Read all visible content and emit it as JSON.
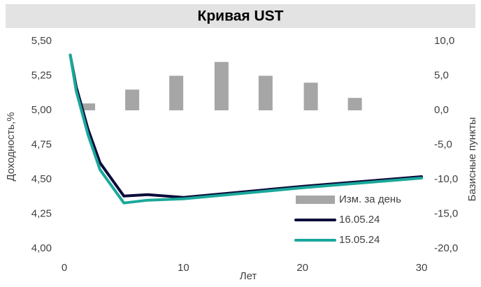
{
  "chart_data": {
    "type": "line",
    "title": "Кривая UST",
    "xlabel": "Лет",
    "ylabel": "Доходность,%",
    "y2label": "Базисные пункты",
    "xlim": [
      0,
      30
    ],
    "xticks": [
      0,
      10,
      20,
      30
    ],
    "ylim": [
      4.0,
      5.5
    ],
    "yticks": [
      {
        "value": 4.0,
        "label": "4,00"
      },
      {
        "value": 4.25,
        "label": "4,25"
      },
      {
        "value": 4.5,
        "label": "4,50"
      },
      {
        "value": 4.75,
        "label": "4,75"
      },
      {
        "value": 5.0,
        "label": "5,00"
      },
      {
        "value": 5.25,
        "label": "5,25"
      },
      {
        "value": 5.5,
        "label": "5,50"
      }
    ],
    "y2lim": [
      -20,
      10
    ],
    "y2ticks": [
      {
        "value": -20,
        "label": "-20,0"
      },
      {
        "value": -15,
        "label": "-15,0"
      },
      {
        "value": -10,
        "label": "-10,0"
      },
      {
        "value": -5,
        "label": "-5,0"
      },
      {
        "value": 0,
        "label": "0,0"
      },
      {
        "value": 5,
        "label": "5,0"
      },
      {
        "value": 10,
        "label": "10,0"
      }
    ],
    "legend": "lower right",
    "series": [
      {
        "name": "Изм. за день",
        "type": "bar",
        "axis": "y2",
        "color": "#a6a6a6",
        "x": [
          2,
          5.7,
          9.4,
          13.2,
          16.9,
          20.7,
          24.4
        ],
        "values": [
          1,
          3,
          5,
          7,
          5,
          4,
          1.8
        ]
      },
      {
        "name": "16.05.24",
        "type": "line",
        "color": "#0b0b3b",
        "x": [
          0.5,
          1,
          2,
          3,
          5,
          7,
          10,
          20,
          30
        ],
        "values": [
          5.4,
          5.17,
          4.86,
          4.62,
          4.38,
          4.39,
          4.37,
          4.45,
          4.52
        ]
      },
      {
        "name": "15.05.24",
        "type": "line",
        "color": "#1aa89a",
        "x": [
          0.5,
          1,
          2,
          3,
          5,
          7,
          10,
          20,
          30
        ],
        "values": [
          5.4,
          5.14,
          4.82,
          4.57,
          4.33,
          4.35,
          4.36,
          4.44,
          4.51
        ]
      }
    ]
  }
}
